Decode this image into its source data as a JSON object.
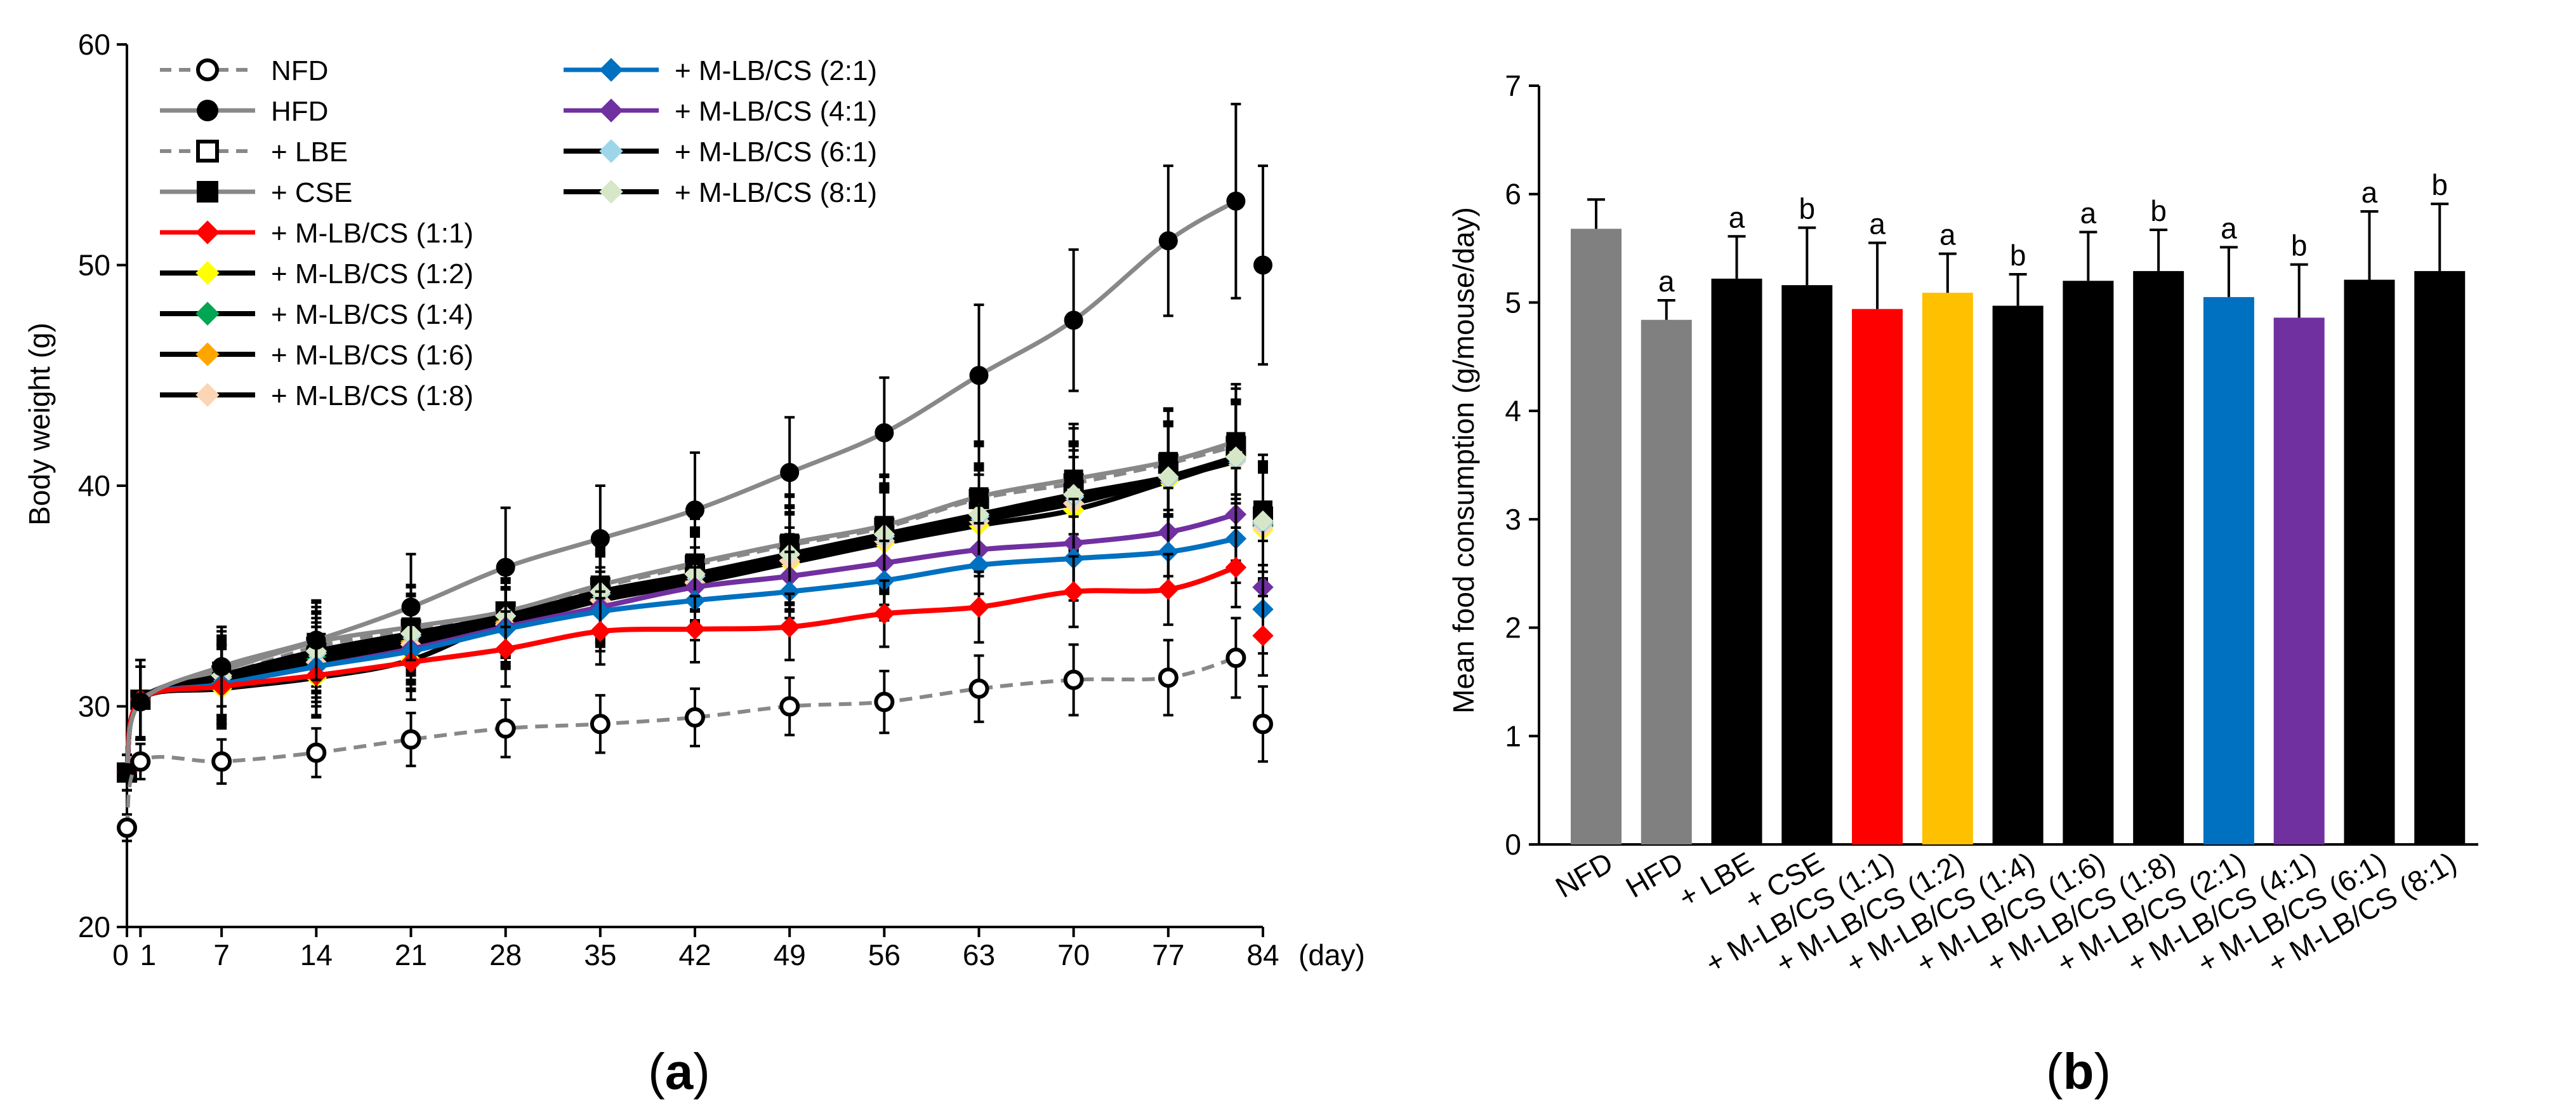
{
  "chart_data": [
    {
      "type": "line",
      "panel": "a",
      "ylabel": "Body weight (g)",
      "xunit": "(day)",
      "ylim": [
        20,
        60
      ],
      "yticks": [
        20,
        30,
        40,
        50,
        60
      ],
      "xticks": [
        0,
        1,
        7,
        14,
        21,
        28,
        35,
        42,
        49,
        56,
        63,
        70,
        77,
        84
      ],
      "x": [
        0,
        1,
        7,
        14,
        21,
        28,
        35,
        42,
        49,
        56,
        63,
        70,
        77,
        82,
        84
      ],
      "series": [
        {
          "name": "NFD",
          "color": "#888888",
          "dash": true,
          "marker": "open-circle",
          "values": [
            24.5,
            27.5,
            27.5,
            27.9,
            28.5,
            29.0,
            29.2,
            29.5,
            30.0,
            30.2,
            30.8,
            31.2,
            31.3,
            32.2,
            29.2
          ],
          "err": [
            0.6,
            0.8,
            1.0,
            1.1,
            1.2,
            1.3,
            1.3,
            1.3,
            1.3,
            1.4,
            1.5,
            1.6,
            1.7,
            1.8,
            1.7
          ]
        },
        {
          "name": "HFD",
          "color": "#888888",
          "dash": false,
          "marker": "filled-circle",
          "values": [
            27.0,
            30.2,
            31.8,
            33.0,
            34.5,
            36.3,
            37.6,
            38.9,
            40.6,
            42.4,
            45.0,
            47.5,
            51.1,
            52.9,
            50.0
          ],
          "err": [
            0.8,
            1.6,
            1.8,
            1.8,
            2.4,
            2.7,
            2.4,
            2.6,
            2.5,
            2.5,
            3.2,
            3.2,
            3.4,
            4.4,
            4.5
          ]
        },
        {
          "name": "+ LBE",
          "color": "#888888",
          "dash": true,
          "marker": "open-square",
          "values": [
            27.0,
            30.3,
            31.4,
            32.7,
            33.5,
            34.3,
            35.4,
            36.4,
            37.3,
            38.1,
            39.4,
            40.1,
            41.0,
            41.8,
            38.6
          ],
          "err": [
            0.8,
            1.8,
            2.0,
            1.8,
            1.9,
            2.0,
            2.0,
            2.1,
            2.2,
            2.3,
            2.5,
            2.5,
            2.4,
            2.6,
            2.5
          ]
        },
        {
          "name": "+ CSE",
          "color": "#888888",
          "dash": false,
          "marker": "filled-square",
          "values": [
            27.0,
            30.3,
            31.6,
            32.9,
            33.6,
            34.3,
            35.5,
            36.5,
            37.4,
            38.2,
            39.5,
            40.3,
            41.1,
            42.0,
            38.9
          ],
          "err": [
            0.8,
            1.8,
            2.0,
            1.8,
            1.9,
            2.0,
            2.0,
            2.1,
            2.2,
            2.3,
            2.5,
            2.5,
            2.4,
            2.6,
            2.5
          ]
        },
        {
          "name": "+ M-LB/CS (1:1)",
          "color": "#ff0000",
          "dash": false,
          "marker": "diamond",
          "values": [
            27.0,
            30.3,
            30.9,
            31.4,
            32.0,
            32.6,
            33.4,
            33.5,
            33.6,
            34.2,
            34.5,
            35.2,
            35.3,
            36.3,
            33.2
          ],
          "err": [
            0.8,
            1.8,
            1.8,
            1.8,
            1.7,
            1.7,
            1.5,
            1.5,
            1.5,
            1.5,
            1.6,
            1.6,
            1.6,
            1.8,
            1.8
          ]
        },
        {
          "name": "+ M-LB/CS (1:2)",
          "color": "#000000",
          "dash": false,
          "marker": "diamond",
          "markerColor": "#ffff00",
          "values": [
            27.0,
            30.3,
            30.8,
            31.3,
            32.1,
            33.9,
            34.9,
            35.6,
            36.5,
            37.4,
            38.2,
            38.9,
            40.2,
            41.2,
            38.0
          ],
          "err": [
            0.8,
            1.8,
            1.8,
            1.8,
            1.8,
            1.9,
            2.0,
            2.1,
            2.2,
            2.3,
            2.3,
            2.4,
            2.5,
            2.6,
            2.6
          ]
        },
        {
          "name": "+ M-LB/CS (1:4)",
          "color": "#000000",
          "dash": false,
          "marker": "diamond",
          "markerColor": "#00a651",
          "values": [
            27.0,
            30.3,
            31.2,
            32.2,
            33.0,
            33.9,
            35.0,
            35.8,
            36.8,
            37.6,
            38.5,
            39.4,
            40.4,
            41.3,
            38.2
          ],
          "err": [
            0.8,
            1.8,
            1.8,
            1.8,
            1.8,
            1.9,
            2.0,
            2.1,
            2.2,
            2.3,
            2.3,
            2.4,
            2.5,
            2.6,
            2.6
          ]
        },
        {
          "name": "+ M-LB/CS (1:6)",
          "color": "#000000",
          "dash": false,
          "marker": "diamond",
          "markerColor": "#ffa500",
          "values": [
            27.0,
            30.3,
            31.1,
            32.0,
            32.9,
            33.8,
            34.9,
            35.7,
            36.8,
            37.7,
            38.7,
            39.5,
            40.4,
            41.3,
            38.3
          ],
          "err": [
            0.8,
            1.8,
            1.8,
            1.8,
            1.8,
            1.9,
            2.0,
            2.1,
            2.2,
            2.3,
            2.3,
            2.4,
            2.5,
            2.6,
            2.6
          ]
        },
        {
          "name": "+ M-LB/CS (1:8)",
          "color": "#000000",
          "dash": false,
          "marker": "diamond",
          "markerColor": "#fcd5b5",
          "values": [
            27.0,
            30.3,
            31.0,
            32.0,
            32.8,
            33.7,
            34.8,
            35.6,
            36.6,
            37.5,
            38.4,
            39.2,
            40.3,
            41.1,
            38.1
          ],
          "err": [
            0.8,
            1.8,
            1.8,
            1.8,
            1.8,
            1.9,
            2.0,
            2.1,
            2.2,
            2.3,
            2.3,
            2.4,
            2.5,
            2.6,
            2.6
          ]
        },
        {
          "name": "+ M-LB/CS (2:1)",
          "color": "#0070c0",
          "dash": false,
          "marker": "diamond",
          "values": [
            27.0,
            30.3,
            31.0,
            31.8,
            32.5,
            33.5,
            34.3,
            34.8,
            35.2,
            35.7,
            36.4,
            36.7,
            37.0,
            37.6,
            34.4
          ],
          "err": [
            0.8,
            1.8,
            1.8,
            1.8,
            1.8,
            1.8,
            1.8,
            1.8,
            1.8,
            1.8,
            1.9,
            1.9,
            1.9,
            2.0,
            2.0
          ]
        },
        {
          "name": "+ M-LB/CS (4:1)",
          "color": "#7030a0",
          "dash": false,
          "marker": "diamond",
          "values": [
            27.0,
            30.3,
            31.0,
            31.8,
            32.6,
            33.6,
            34.5,
            35.4,
            35.9,
            36.5,
            37.1,
            37.4,
            37.9,
            38.7,
            35.4
          ],
          "err": [
            0.8,
            1.8,
            1.8,
            1.8,
            1.8,
            1.8,
            1.8,
            1.8,
            1.9,
            1.9,
            2.0,
            2.0,
            2.0,
            2.1,
            2.1
          ]
        },
        {
          "name": "+ M-LB/CS (6:1)",
          "color": "#000000",
          "dash": false,
          "marker": "diamond",
          "markerColor": "#9dd6ea",
          "values": [
            27.0,
            30.3,
            31.3,
            32.4,
            33.2,
            34.1,
            35.1,
            35.9,
            36.9,
            37.7,
            38.6,
            39.5,
            40.3,
            41.2,
            38.3
          ],
          "err": [
            0.8,
            1.8,
            1.8,
            1.8,
            1.8,
            1.9,
            2.0,
            2.1,
            2.2,
            2.3,
            2.3,
            2.4,
            2.5,
            2.6,
            2.6
          ]
        },
        {
          "name": "+ M-LB/CS (8:1)",
          "color": "#000000",
          "dash": false,
          "marker": "diamond",
          "markerColor": "#d6e7c8",
          "values": [
            27.0,
            30.3,
            31.4,
            32.5,
            33.3,
            34.1,
            35.2,
            36.0,
            36.9,
            37.8,
            38.7,
            39.6,
            40.4,
            41.3,
            38.4
          ],
          "err": [
            0.8,
            1.8,
            1.8,
            1.8,
            1.8,
            1.9,
            2.0,
            2.1,
            2.2,
            2.3,
            2.3,
            2.4,
            2.5,
            2.6,
            2.6
          ]
        }
      ]
    },
    {
      "type": "bar",
      "panel": "b",
      "ylabel": "Mean food consumption (g/mouse/day)",
      "ylim": [
        0,
        7
      ],
      "yticks": [
        0,
        1,
        2,
        3,
        4,
        5,
        6,
        7
      ],
      "categories": [
        "NFD",
        "HFD",
        "+ LBE",
        "+ CSE",
        "+ M-LB/CS (1:1)",
        "+ M-LB/CS (1:2)",
        "+ M-LB/CS (1:4)",
        "+ M-LB/CS (1:6)",
        "+ M-LB/CS (1:8)",
        "+ M-LB/CS (2:1)",
        "+ M-LB/CS (4:1)",
        "+ M-LB/CS (6:1)",
        "+ M-LB/CS (8:1)"
      ],
      "values": [
        5.68,
        4.84,
        5.22,
        5.16,
        4.94,
        5.09,
        4.97,
        5.2,
        5.29,
        5.05,
        4.86,
        5.21,
        5.29
      ],
      "err": [
        0.27,
        0.18,
        0.39,
        0.53,
        0.61,
        0.36,
        0.29,
        0.45,
        0.38,
        0.46,
        0.49,
        0.63,
        0.62
      ],
      "colors": [
        "#808080",
        "#808080",
        "#000000",
        "#000000",
        "#ff0000",
        "#ffc000",
        "#000000",
        "#000000",
        "#000000",
        "#0070c0",
        "#7030a0",
        "#000000",
        "#000000"
      ],
      "significance": [
        "",
        "a",
        "a",
        "b",
        "a",
        "a",
        "b",
        "a",
        "b",
        "a",
        "b",
        "a",
        "b"
      ]
    }
  ],
  "panels": {
    "a": "a",
    "b": "b"
  }
}
